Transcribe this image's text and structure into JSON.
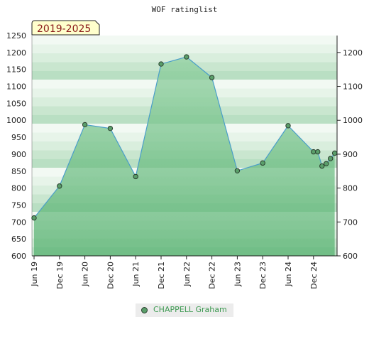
{
  "chart_data": {
    "type": "area",
    "title": "WOF ratinglist",
    "period_label": "2019-2025",
    "ylim": [
      600,
      1250
    ],
    "yticks_left": [
      600,
      650,
      700,
      750,
      800,
      850,
      900,
      950,
      1000,
      1050,
      1100,
      1150,
      1200,
      1250
    ],
    "yticks_right": [
      600,
      700,
      800,
      900,
      1000,
      1100,
      1200
    ],
    "x_tick_labels": [
      "Jun 19",
      "Dec 19",
      "Jun 20",
      "Dec 20",
      "Jun 21",
      "Dec 21",
      "Jun 22",
      "Dec 22",
      "Jun 23",
      "Dec 23",
      "Jun 24",
      "Dec 24"
    ],
    "grid": true,
    "legend_position": "bottom-center",
    "series": [
      {
        "name": "CHAPPELL Graham",
        "color": "#5a9e6a",
        "x": [
          "2019-06",
          "2019-12",
          "2020-06",
          "2020-12",
          "2021-06",
          "2021-12",
          "2022-06",
          "2022-12",
          "2023-06",
          "2023-12",
          "2024-06",
          "2024-12",
          "2025-01",
          "2025-02",
          "2025-03",
          "2025-04",
          "2025-05"
        ],
        "values": [
          712,
          806,
          987,
          976,
          834,
          1166,
          1187,
          1126,
          851,
          874,
          984,
          907,
          907,
          865,
          872,
          887,
          903
        ]
      }
    ]
  }
}
